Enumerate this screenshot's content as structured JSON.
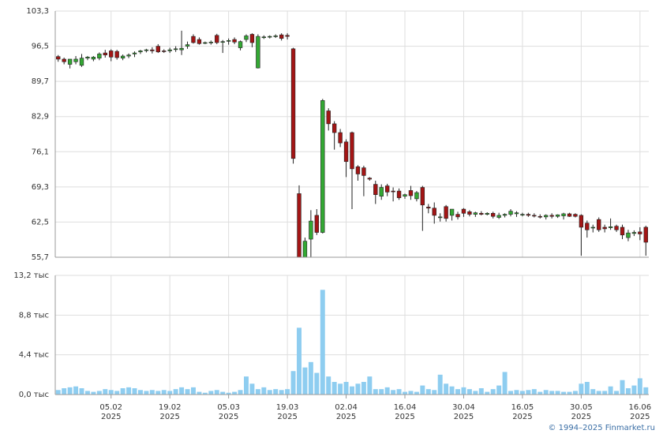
{
  "chart_data": [
    {
      "type": "candlestick",
      "up_color": "#33a833",
      "down_color": "#a31515",
      "grid": true,
      "ylim": [
        55.7,
        103.3
      ],
      "yticks": [
        {
          "value": 55.7,
          "label": "55,7"
        },
        {
          "value": 62.5,
          "label": "62,5"
        },
        {
          "value": 69.3,
          "label": "69,3"
        },
        {
          "value": 76.1,
          "label": "76,1"
        },
        {
          "value": 82.9,
          "label": "82,9"
        },
        {
          "value": 89.7,
          "label": "89,7"
        },
        {
          "value": 96.5,
          "label": "96,5"
        },
        {
          "value": 103.3,
          "label": "103,3"
        }
      ],
      "open": [
        94.5,
        94.0,
        93.0,
        93.5,
        92.8,
        94.2,
        94.0,
        94.2,
        95.2,
        95.6,
        95.5,
        94.2,
        94.6,
        95.0,
        95.4,
        95.7,
        95.8,
        96.5,
        95.6,
        95.6,
        96.0,
        95.8,
        96.5,
        98.4,
        97.8,
        97.1,
        97.3,
        98.6,
        97.3,
        97.6,
        97.8,
        96.2,
        97.8,
        98.8,
        92.3,
        98.3,
        98.3,
        98.5,
        98.7,
        98.6,
        96.0,
        68.0,
        55.5,
        59.2,
        63.8,
        60.5,
        84.0,
        81.5,
        79.8,
        78.0,
        79.8,
        73.2,
        73.0,
        71.0,
        69.8,
        67.5,
        69.5,
        68.5,
        68.5,
        67.5,
        68.6,
        67.0,
        69.2,
        65.4,
        65.2,
        63.5,
        65.5,
        63.8,
        64.0,
        65.0,
        64.5,
        64.0,
        64.2,
        64.0,
        64.2,
        63.4,
        63.8,
        64.0,
        64.1,
        63.9,
        64.0,
        63.8,
        63.6,
        63.5,
        63.8,
        63.6,
        63.7,
        64.1,
        64.0,
        63.8,
        62.3,
        61.5,
        63.0,
        61.5,
        61.4,
        61.7,
        61.5,
        59.5,
        60.3,
        60.6,
        61.5
      ],
      "high": [
        94.8,
        94.3,
        94.0,
        94.6,
        95.0,
        94.6,
        94.6,
        95.3,
        95.8,
        95.9,
        95.8,
        94.9,
        95.1,
        95.5,
        95.8,
        96.0,
        96.3,
        96.9,
        95.9,
        96.2,
        96.5,
        99.5,
        97.4,
        98.8,
        98.2,
        97.4,
        97.6,
        98.9,
        97.7,
        98.0,
        98.2,
        97.6,
        98.8,
        99.0,
        98.8,
        98.6,
        98.6,
        98.8,
        99.0,
        99.0,
        96.2,
        69.6,
        59.5,
        64.8,
        65.0,
        86.3,
        84.5,
        82.0,
        80.5,
        78.5,
        80.0,
        73.5,
        73.4,
        71.2,
        70.5,
        69.8,
        69.9,
        69.2,
        69.0,
        68.0,
        69.5,
        68.5,
        69.5,
        66.0,
        66.3,
        64.2,
        65.8,
        65.0,
        64.5,
        65.2,
        64.8,
        64.5,
        64.6,
        64.4,
        64.5,
        64.3,
        64.2,
        65.0,
        64.6,
        64.3,
        64.3,
        64.2,
        64.0,
        64.0,
        64.2,
        64.0,
        64.3,
        64.3,
        64.2,
        64.0,
        62.8,
        62.0,
        63.4,
        62.0,
        63.2,
        62.0,
        62.0,
        61.0,
        60.9,
        61.5,
        61.8
      ],
      "low": [
        93.5,
        93.0,
        92.2,
        93.0,
        92.5,
        93.8,
        93.6,
        93.8,
        94.3,
        93.6,
        93.9,
        93.8,
        94.2,
        94.4,
        95.0,
        95.3,
        95.1,
        95.2,
        95.2,
        95.2,
        95.4,
        94.8,
        96.0,
        97.0,
        96.8,
        96.9,
        96.8,
        96.9,
        95.2,
        96.8,
        96.9,
        95.7,
        97.3,
        96.3,
        92.2,
        97.9,
        98.0,
        98.1,
        97.6,
        97.8,
        73.8,
        54.0,
        54.0,
        55.0,
        60.0,
        60.3,
        80.2,
        76.5,
        77.0,
        71.2,
        65.0,
        70.5,
        67.5,
        70.5,
        66.0,
        66.8,
        67.5,
        66.5,
        66.8,
        67.0,
        66.8,
        66.5,
        60.8,
        64.2,
        62.2,
        62.6,
        62.6,
        62.8,
        63.0,
        63.5,
        63.6,
        63.5,
        63.8,
        63.8,
        63.2,
        63.1,
        63.4,
        63.6,
        63.5,
        63.6,
        63.5,
        63.4,
        63.2,
        63.0,
        63.2,
        63.3,
        63.0,
        63.5,
        63.4,
        56.0,
        59.5,
        60.5,
        60.6,
        60.5,
        61.0,
        60.6,
        59.2,
        58.8,
        59.8,
        59.0,
        56.0
      ],
      "close": [
        94.0,
        93.5,
        94.0,
        94.0,
        94.2,
        94.4,
        94.4,
        95.0,
        94.8,
        94.4,
        94.3,
        94.6,
        94.8,
        95.2,
        95.6,
        95.8,
        95.6,
        95.4,
        95.5,
        95.8,
        96.0,
        96.1,
        96.8,
        97.2,
        97.0,
        97.2,
        97.3,
        97.2,
        97.4,
        97.6,
        97.3,
        97.4,
        98.5,
        97.2,
        98.4,
        98.3,
        98.4,
        98.5,
        98.0,
        98.4,
        74.8,
        55.0,
        58.8,
        62.7,
        60.5,
        86.0,
        81.5,
        79.8,
        77.8,
        74.2,
        72.8,
        71.8,
        71.5,
        70.8,
        67.8,
        69.2,
        68.3,
        68.4,
        67.2,
        67.8,
        67.6,
        68.2,
        65.8,
        65.2,
        63.8,
        63.5,
        63.2,
        65.0,
        63.5,
        64.2,
        64.0,
        64.3,
        64.0,
        64.2,
        63.6,
        63.8,
        64.0,
        64.6,
        64.3,
        64.0,
        63.8,
        63.7,
        63.5,
        63.8,
        63.6,
        63.9,
        64.1,
        63.6,
        63.6,
        61.5,
        61.0,
        61.5,
        61.0,
        61.2,
        61.6,
        61.0,
        60.0,
        60.4,
        60.5,
        60.2,
        58.6
      ]
    },
    {
      "type": "bar",
      "color": "#8ecdf0",
      "grid": true,
      "ylim": [
        0,
        13.2
      ],
      "yticks": [
        {
          "value": 0,
          "label": "0,0 тыс"
        },
        {
          "value": 4.4,
          "label": "4,4 тыс"
        },
        {
          "value": 8.8,
          "label": "8,8 тыс"
        },
        {
          "value": 13.2,
          "label": "13,2 тыс"
        }
      ],
      "categories": [
        null,
        null,
        null,
        null,
        null,
        null,
        null,
        null,
        null,
        [
          "05.02",
          "2025"
        ],
        null,
        null,
        null,
        null,
        null,
        null,
        null,
        null,
        null,
        [
          "19.02",
          "2025"
        ],
        null,
        null,
        null,
        null,
        null,
        null,
        null,
        null,
        null,
        [
          "05.03",
          "2025"
        ],
        null,
        null,
        null,
        null,
        null,
        null,
        null,
        null,
        null,
        [
          "19.03",
          "2025"
        ],
        null,
        null,
        null,
        null,
        null,
        null,
        null,
        null,
        null,
        [
          "02.04",
          "2025"
        ],
        null,
        null,
        null,
        null,
        null,
        null,
        null,
        null,
        null,
        [
          "16.04",
          "2025"
        ],
        null,
        null,
        null,
        null,
        null,
        null,
        null,
        null,
        null,
        [
          "30.04",
          "2025"
        ],
        null,
        null,
        null,
        null,
        null,
        null,
        null,
        null,
        null,
        [
          "16.05",
          "2025"
        ],
        null,
        null,
        null,
        null,
        null,
        null,
        null,
        null,
        null,
        [
          "30.05",
          "2025"
        ],
        null,
        null,
        null,
        null,
        null,
        null,
        null,
        null,
        null,
        [
          "16.06",
          "2025"
        ],
        null
      ],
      "values": [
        0.5,
        0.7,
        0.8,
        0.9,
        0.7,
        0.4,
        0.3,
        0.4,
        0.6,
        0.5,
        0.4,
        0.7,
        0.8,
        0.7,
        0.5,
        0.4,
        0.5,
        0.4,
        0.5,
        0.4,
        0.6,
        0.8,
        0.6,
        0.8,
        0.3,
        0.2,
        0.4,
        0.5,
        0.3,
        0.2,
        0.3,
        0.5,
        2.0,
        1.2,
        0.6,
        0.8,
        0.5,
        0.6,
        0.5,
        0.6,
        2.6,
        7.4,
        3.0,
        3.6,
        2.4,
        11.6,
        2.0,
        1.4,
        1.2,
        1.4,
        0.9,
        1.2,
        1.4,
        2.0,
        0.6,
        0.6,
        0.8,
        0.5,
        0.6,
        0.3,
        0.4,
        0.3,
        1.0,
        0.6,
        0.5,
        2.2,
        1.2,
        0.9,
        0.6,
        0.8,
        0.6,
        0.4,
        0.7,
        0.3,
        0.6,
        1.0,
        2.5,
        0.4,
        0.5,
        0.4,
        0.5,
        0.6,
        0.3,
        0.5,
        0.4,
        0.4,
        0.3,
        0.3,
        0.4,
        1.2,
        1.4,
        0.6,
        0.4,
        0.4,
        0.9,
        0.4,
        1.6,
        0.7,
        1.0,
        1.8,
        0.8
      ]
    }
  ],
  "footer": "© 1994–2025 Finmarket.ru"
}
